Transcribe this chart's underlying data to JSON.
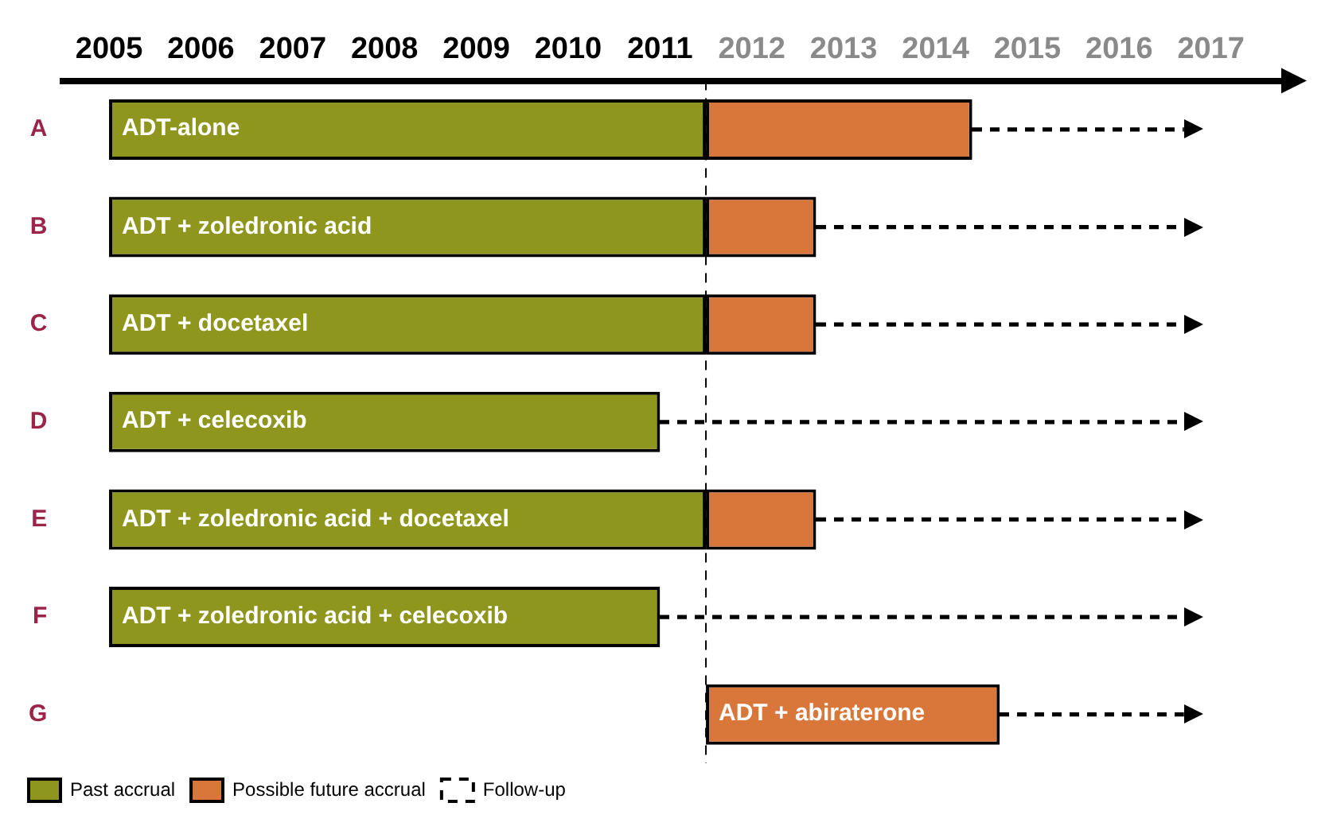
{
  "chart_data": {
    "type": "bar",
    "orientation": "horizontal",
    "categories": [
      "A",
      "B",
      "C",
      "D",
      "E",
      "F",
      "G"
    ],
    "series": [
      {
        "name": "Past accrual",
        "color": "#8f961e",
        "base": [
          2005.5,
          2005.5,
          2005.5,
          2005.5,
          2005.5,
          2005.5,
          null
        ],
        "values": [
          6.5,
          6.5,
          6.5,
          6.0,
          6.5,
          6.0,
          null
        ]
      },
      {
        "name": "Possible future accrual",
        "color": "#d9773b",
        "base": [
          2012.0,
          2012.0,
          2012.0,
          null,
          2012.0,
          null,
          2012.0
        ],
        "values": [
          2.9,
          1.2,
          1.2,
          null,
          1.2,
          null,
          3.2
        ]
      },
      {
        "name": "Follow-up",
        "color": "#000000",
        "line_style": "dashed",
        "base": [
          2014.9,
          2013.2,
          2013.2,
          2011.5,
          2013.2,
          2011.5,
          2015.2
        ],
        "values": [
          2.3,
          4.0,
          4.0,
          5.7,
          4.0,
          5.7,
          2.0
        ]
      }
    ],
    "xlim": [
      2005,
      2018.3
    ],
    "xticks": [
      {
        "value": 2005.5,
        "label": "2005"
      },
      {
        "value": 2006.5,
        "label": "2006"
      },
      {
        "value": 2007.5,
        "label": "2007"
      },
      {
        "value": 2008.5,
        "label": "2008"
      },
      {
        "value": 2009.5,
        "label": "2009"
      },
      {
        "value": 2010.5,
        "label": "2010"
      },
      {
        "value": 2011.5,
        "label": "2011"
      },
      {
        "value": 2012.5,
        "label": "2012"
      },
      {
        "value": 2013.5,
        "label": "2013"
      },
      {
        "value": 2014.5,
        "label": "2014"
      },
      {
        "value": 2015.5,
        "label": "2015"
      },
      {
        "value": 2016.5,
        "label": "2016"
      },
      {
        "value": 2017.5,
        "label": "2017"
      }
    ],
    "ref_lines": [
      {
        "axis": "x",
        "value": 2012.0,
        "line_style": "dashed",
        "color": "#000000"
      }
    ],
    "annotations": [
      "ADT-alone",
      "ADT + zoledronic acid",
      "ADT + docetaxel",
      "ADT + celecoxib",
      "ADT + zoledronic acid + docetaxel",
      "ADT + zoledronic acid + celecoxib",
      "ADT + abiraterone"
    ],
    "grid": false,
    "legend": "bottom left"
  }
}
